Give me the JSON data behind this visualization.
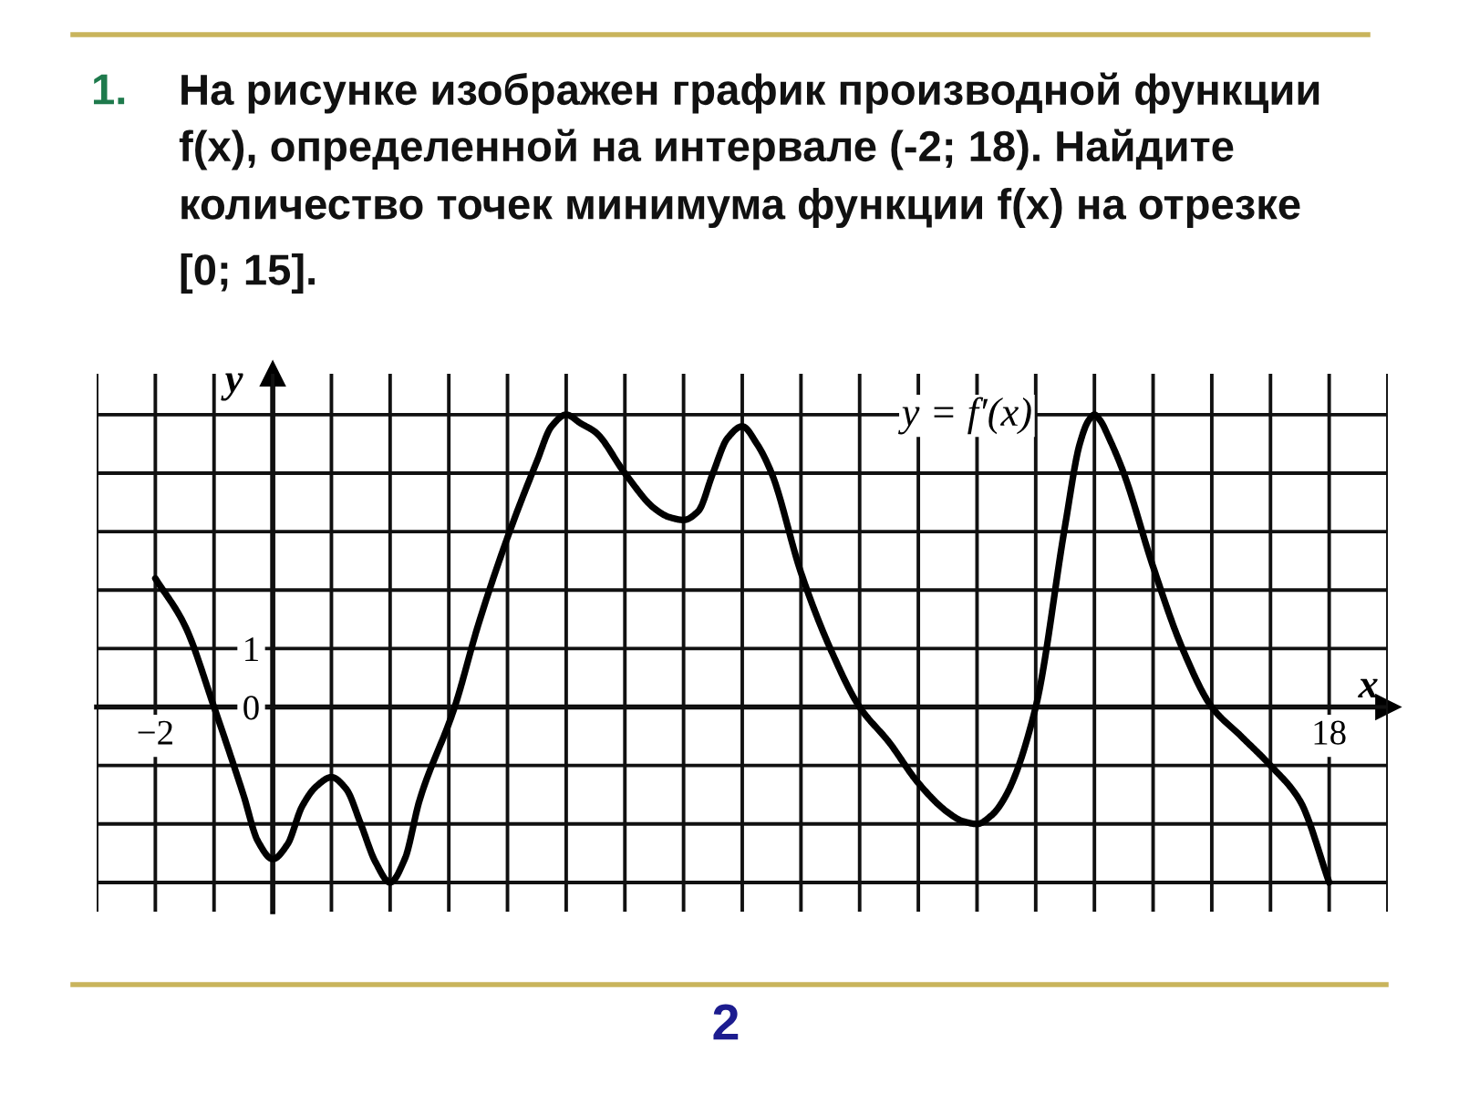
{
  "chart_data": {
    "type": "line",
    "title": "1. На рисунке изображен график производной функции\nf(x), определенной на интервале (-2; 18). Найдите\nколичество точек минимума функции f(x) на отрезке\n[0; 15].",
    "xlabel": "x",
    "ylabel": "y",
    "x": [
      -2,
      -1.5,
      -1,
      -0.5,
      -0.25,
      0,
      0.25,
      0.5,
      0.75,
      1,
      1.25,
      1.5,
      1.75,
      2,
      2.25,
      2.5,
      3.1,
      3.5,
      4,
      4.5,
      4.75,
      5,
      5.25,
      5.5,
      6,
      6.5,
      6.75,
      7,
      7.25,
      7.5,
      7.75,
      8,
      8.25,
      8.5,
      9,
      9.5,
      10,
      10.5,
      11,
      11.5,
      11.75,
      12,
      12.25,
      12.5,
      13,
      13.5,
      13.75,
      13.9,
      14,
      14.1,
      14.25,
      14.5,
      15,
      15.5,
      16,
      16.5,
      17,
      17.5,
      18
    ],
    "series": [
      {
        "name": "y = f′(x)",
        "color": "#000000",
        "values": [
          2.2,
          1.4,
          0,
          -1.5,
          -2.3,
          -2.6,
          -2.35,
          -1.7,
          -1.35,
          -1.2,
          -1.4,
          -2.0,
          -2.65,
          -3,
          -2.6,
          -1.6,
          0,
          1.4,
          2.9,
          4.2,
          4.8,
          5,
          4.85,
          4.7,
          4.0,
          3.4,
          3.25,
          3.2,
          3.35,
          4.0,
          4.6,
          4.8,
          4.5,
          4.0,
          2.3,
          1.0,
          0,
          -0.6,
          -1.3,
          -1.8,
          -1.95,
          -2,
          -1.85,
          -1.5,
          0,
          3.1,
          4.5,
          4.9,
          5,
          4.9,
          4.6,
          4.0,
          2.4,
          1.0,
          0,
          -0.5,
          -1,
          -1.6,
          -3
        ]
      }
    ],
    "xlim": [
      -3,
      19
    ],
    "ylim": [
      -3.5,
      5.7
    ],
    "xticks": [
      {
        "value": -3,
        "label": null
      },
      {
        "value": -2,
        "label": "−2"
      },
      {
        "value": -1,
        "label": null
      },
      {
        "value": 0,
        "label": null
      },
      {
        "value": 1,
        "label": null
      },
      {
        "value": 2,
        "label": null
      },
      {
        "value": 3,
        "label": null
      },
      {
        "value": 4,
        "label": null
      },
      {
        "value": 5,
        "label": null
      },
      {
        "value": 6,
        "label": null
      },
      {
        "value": 7,
        "label": null
      },
      {
        "value": 8,
        "label": null
      },
      {
        "value": 9,
        "label": null
      },
      {
        "value": 10,
        "label": null
      },
      {
        "value": 11,
        "label": null
      },
      {
        "value": 12,
        "label": null
      },
      {
        "value": 13,
        "label": null
      },
      {
        "value": 14,
        "label": null
      },
      {
        "value": 15,
        "label": null
      },
      {
        "value": 16,
        "label": null
      },
      {
        "value": 17,
        "label": null
      },
      18,
      {
        "value": 19,
        "label": null
      }
    ],
    "yticks": [
      {
        "value": -3,
        "label": null
      },
      {
        "value": -2,
        "label": null
      },
      {
        "value": -1,
        "label": null
      },
      0,
      1,
      {
        "value": 2,
        "label": null
      },
      {
        "value": 3,
        "label": null
      },
      {
        "value": 4,
        "label": null
      },
      {
        "value": 5,
        "label": null
      }
    ],
    "grid": true,
    "annotations": [
      "2"
    ]
  }
}
